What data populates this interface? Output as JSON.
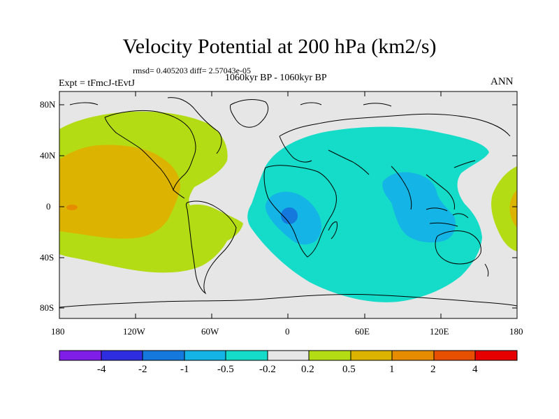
{
  "header": {
    "title": "Velocity Potential at 200 hPa (km2/s)",
    "stats": "rmsd= 0.405203 diff= 2.57043e-05",
    "experiment": "Expt = tFmcJ-tEvtJ",
    "period": "1060kyr BP - 1060kyr BP",
    "season": "ANN"
  },
  "axes": {
    "lat_labels": [
      "80N",
      "40N",
      "0",
      "40S",
      "80S"
    ],
    "lon_labels": [
      "180",
      "120W",
      "60W",
      "0",
      "60E",
      "120E",
      "180"
    ]
  },
  "colorbar": {
    "levels": [
      "-4",
      "-2",
      "-1",
      "-0.5",
      "-0.2",
      "0.2",
      "0.5",
      "1",
      "2",
      "4"
    ],
    "colors": [
      "#7f1ee6",
      "#2e2ee0",
      "#1478dc",
      "#14b4e6",
      "#14dcc8",
      "#e6e6e6",
      "#b4dc14",
      "#dcb400",
      "#e68c00",
      "#e65000",
      "#e60000"
    ]
  },
  "map": {
    "background": "#e6e6e6",
    "regions": [
      {
        "name": "pacific-positive-outer",
        "level": "0.2 to 0.5",
        "color": "#b4dc14"
      },
      {
        "name": "pacific-positive-inner",
        "level": "0.5 to 1",
        "color": "#dcb400"
      },
      {
        "name": "pacific-positive-core",
        "level": "1 to 2",
        "color": "#e68c00"
      },
      {
        "name": "eastern-hemisphere-negative",
        "level": "-0.5 to -0.2",
        "color": "#14dcc8"
      },
      {
        "name": "indian-ocean-negative",
        "level": "-1 to -0.5",
        "color": "#14b4e6"
      },
      {
        "name": "congo-negative-core",
        "level": "-2 to -1",
        "color": "#1478dc"
      }
    ]
  }
}
